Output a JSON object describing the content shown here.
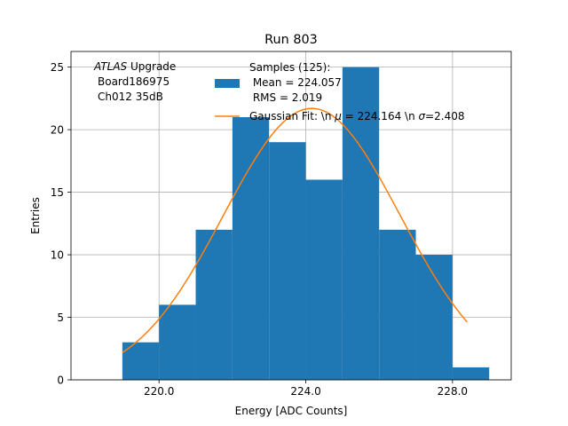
{
  "chart_data": {
    "type": "bar",
    "title": "Run 803",
    "xlabel": "Energy [ADC Counts]",
    "ylabel": "Entries",
    "xlim": [
      217.6,
      229.6
    ],
    "ylim": [
      0,
      26.25
    ],
    "xticks": [
      220,
      224,
      228
    ],
    "xtick_labels": [
      "220.0",
      "224.0",
      "228.0"
    ],
    "yticks": [
      0,
      5,
      10,
      15,
      20,
      25
    ],
    "ytick_labels": [
      "0",
      "5",
      "10",
      "15",
      "20",
      "25"
    ],
    "grid": true,
    "bins": [
      {
        "x0": 219,
        "x1": 220,
        "value": 3
      },
      {
        "x0": 220,
        "x1": 221,
        "value": 6
      },
      {
        "x0": 221,
        "x1": 222,
        "value": 12
      },
      {
        "x0": 222,
        "x1": 223,
        "value": 21
      },
      {
        "x0": 223,
        "x1": 224,
        "value": 19
      },
      {
        "x0": 224,
        "x1": 225,
        "value": 16
      },
      {
        "x0": 225,
        "x1": 226,
        "value": 25
      },
      {
        "x0": 226,
        "x1": 227,
        "value": 12
      },
      {
        "x0": 227,
        "x1": 228,
        "value": 10
      },
      {
        "x0": 228,
        "x1": 229,
        "value": 1
      }
    ],
    "fit": {
      "mu": 224.164,
      "sigma": 2.408,
      "amplitude": 21.7,
      "x_range": [
        219,
        228.4
      ]
    },
    "annotation": {
      "italic": "ATLAS",
      "rest": " Upgrade",
      "line2": "Board186975",
      "line3": "Ch012 35dB"
    },
    "legend": {
      "position": "top-right",
      "hist_label_lines": [
        "Samples (125):",
        " Mean = 224.057",
        " RMS = 2.019"
      ],
      "fit_label_parts": [
        "Gaussian Fit: \\n ",
        "μ",
        " = 224.164 \\n ",
        "σ",
        "=2.408"
      ]
    },
    "colors": {
      "bars": "#1f77b4",
      "fit": "#ff7f0e",
      "grid": "#b0b0b0"
    }
  }
}
